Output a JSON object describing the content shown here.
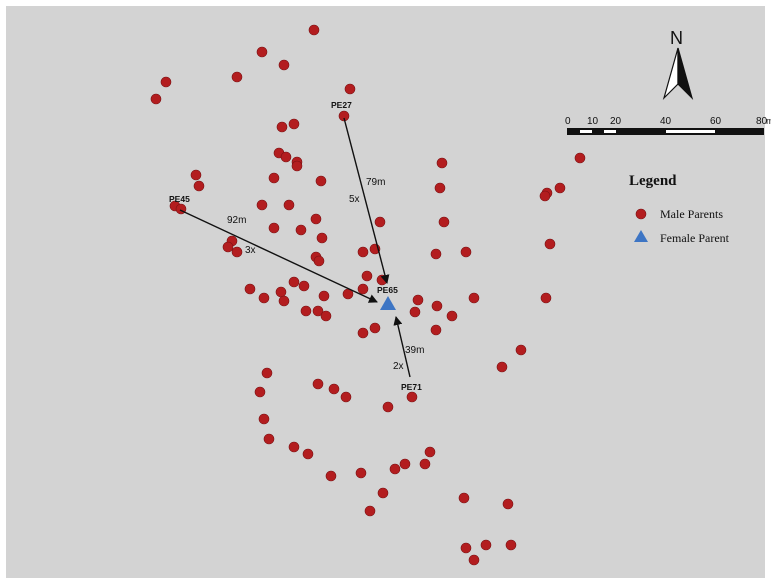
{
  "colors": {
    "background": "#d3d3d3",
    "male_marker": "#b31d1f",
    "male_marker_stroke": "#7a1214",
    "female_marker": "#3d75c4",
    "arrow": "#111111"
  },
  "north_arrow": {
    "label": "N",
    "icon": "north-arrow-icon"
  },
  "scale_bar": {
    "ticks": [
      "0",
      "10",
      "20",
      "40",
      "60",
      "80"
    ],
    "unit": "m"
  },
  "legend": {
    "title": "Legend",
    "items": [
      {
        "label": "Male Parents",
        "symbol": "circle",
        "icon": "male-parent-marker-icon"
      },
      {
        "label": "Female Parent",
        "symbol": "triangle",
        "icon": "female-parent-marker-icon"
      }
    ]
  },
  "female_parent": {
    "label": "PE65"
  },
  "named_parents": [
    {
      "label": "PE27"
    },
    {
      "label": "PE45"
    },
    {
      "label": "PE71"
    }
  ],
  "pollen_flows": [
    {
      "from": "PE27",
      "distance": "79m",
      "count": "5x"
    },
    {
      "from": "PE45",
      "distance": "92m",
      "count": "3x"
    },
    {
      "from": "PE71",
      "distance": "39m",
      "count": "2x"
    }
  ]
}
